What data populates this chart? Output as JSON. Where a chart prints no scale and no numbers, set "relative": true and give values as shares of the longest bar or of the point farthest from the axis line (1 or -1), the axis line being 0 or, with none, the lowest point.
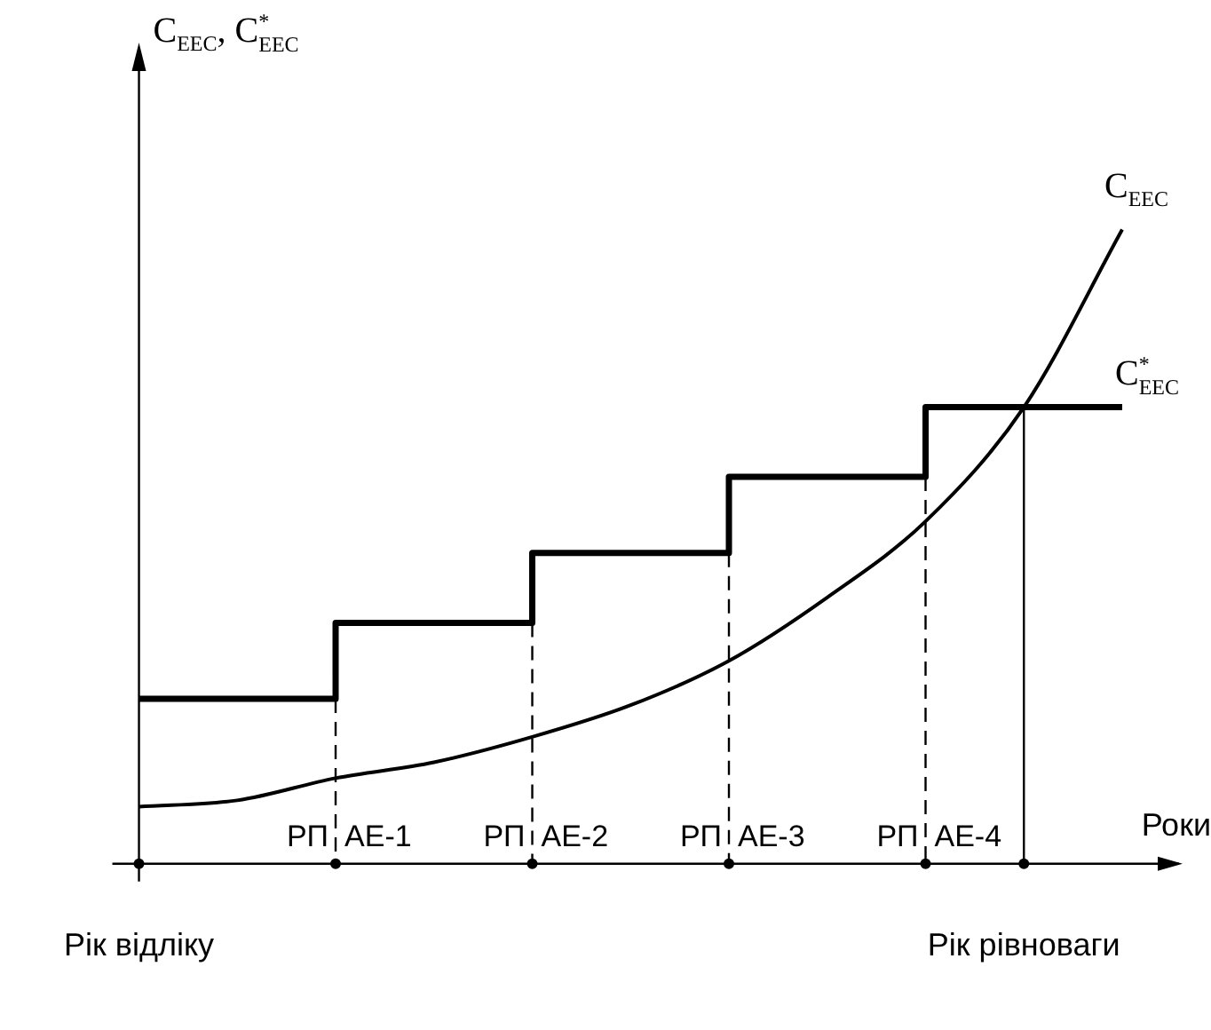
{
  "chart_data": {
    "type": "line",
    "relative": true,
    "xlabel": "Роки",
    "ylabel": "C$_{EEC}$, C$^{*}$$_{EEC}$",
    "categories": [
      "Рік відліку",
      null,
      null,
      null,
      null,
      null,
      null,
      null,
      null,
      "Рік рівноваги",
      null
    ],
    "series": [
      {
        "name": "C$_{EEC}$",
        "type": "line",
        "color": "#000000",
        "values": [
          0.09,
          0.1,
          0.135,
          0.16,
          0.2,
          0.25,
          0.32,
          0.42,
          0.54,
          0.72,
          1
        ]
      },
      {
        "name": "C$^{*}$$_{EEC}$",
        "type": "step",
        "color": "#000000",
        "values": [
          0.26,
          0.26,
          0.38,
          0.38,
          0.49,
          0.49,
          0.61,
          0.61,
          0.72,
          0.72,
          0.72
        ]
      }
    ],
    "annotations": [
      "РП",
      "АЕ-1",
      "РП",
      "АЕ-2",
      "РП",
      "АЕ-3",
      "РП",
      "АЕ-4"
    ],
    "legend": false,
    "marker": "none"
  }
}
